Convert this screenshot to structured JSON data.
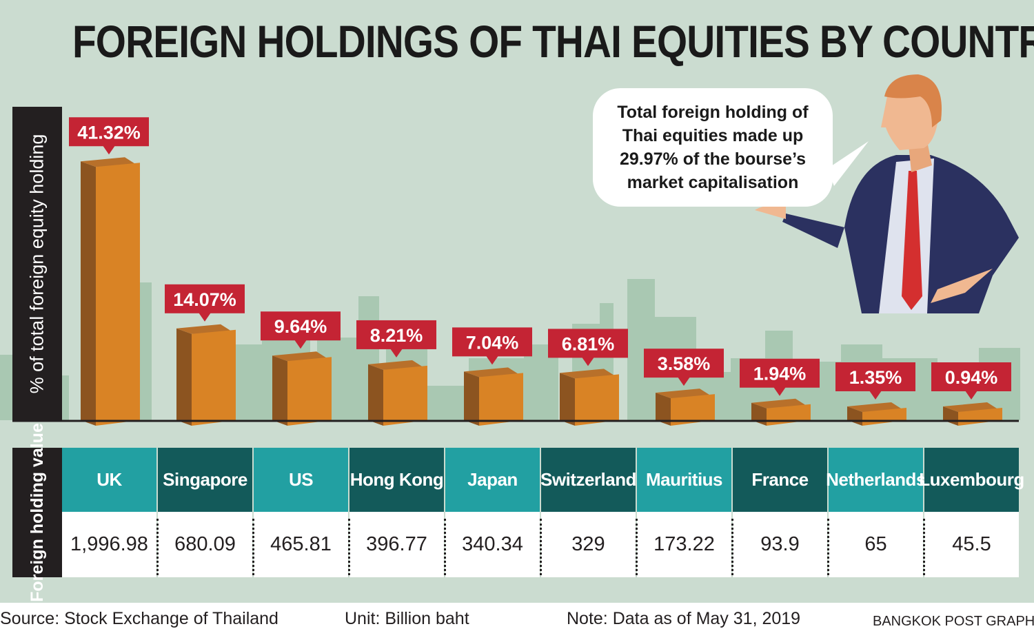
{
  "title": "FOREIGN HOLDINGS OF THAI EQUITIES BY COUNTRY",
  "callout": "Total foreign holding of Thai equities made up 29.97% of the bourse’s market capitalisation",
  "table_row_label": "Foreign holding value",
  "footer": {
    "source": "Source: Stock Exchange of Thailand",
    "unit": "Unit: Billion baht",
    "note": "Note: Data as of May 31, 2019",
    "credit": "BANGKOK POST GRAPHICS"
  },
  "colors": {
    "bar_front": "#d98325",
    "bar_side": "#8c5420",
    "bar_top": "#b8702a",
    "label_bg": "#c42434",
    "header_teal": "#22a0a2",
    "header_dark": "#135a5a",
    "background": "#cbdcd0",
    "skyline": "#a9c8b2"
  },
  "chart_data": {
    "type": "bar",
    "title": "FOREIGN HOLDINGS OF THAI EQUITIES BY COUNTRY",
    "ylabel": "% of total foreign equity holding",
    "categories": [
      "UK",
      "Singapore",
      "US",
      "Hong Kong",
      "Japan",
      "Switzerland",
      "Mauritius",
      "France",
      "Netherlands",
      "Luxembourg"
    ],
    "values": [
      41.32,
      14.07,
      9.64,
      8.21,
      7.04,
      6.81,
      3.58,
      1.94,
      1.35,
      0.94
    ],
    "value_labels": [
      "41.32%",
      "14.07%",
      "9.64%",
      "8.21%",
      "7.04%",
      "6.81%",
      "3.58%",
      "1.94%",
      "1.35%",
      "0.94%"
    ],
    "holding_values": [
      "1,996.98",
      "680.09",
      "465.81",
      "396.77",
      "340.34",
      "329",
      "173.22",
      "93.9",
      "65",
      "45.5"
    ],
    "ylim": [
      0,
      42
    ],
    "grid": false
  }
}
